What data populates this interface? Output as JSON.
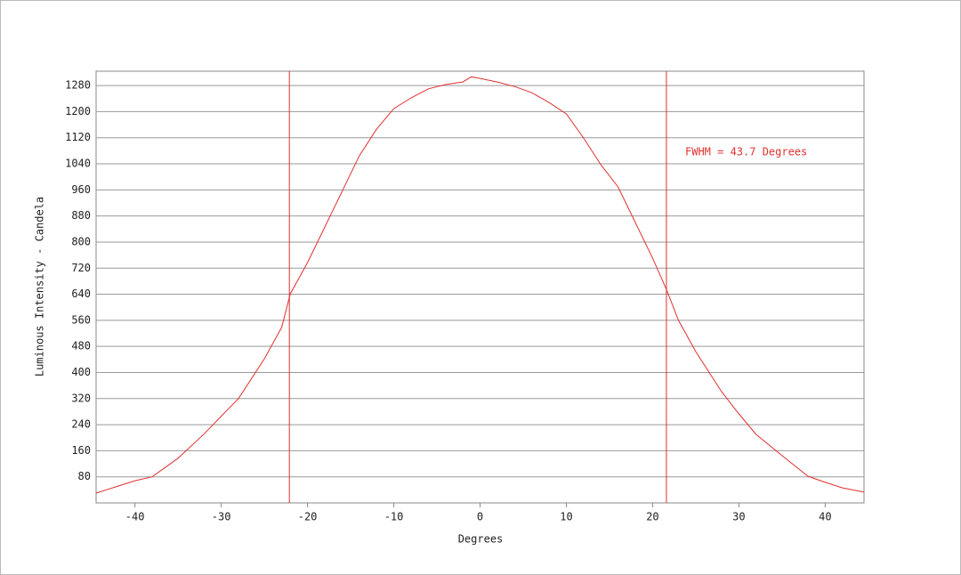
{
  "chart_data": {
    "type": "line",
    "xlabel": "Degrees",
    "ylabel": "Luminous Intensity - Candela",
    "annotation": "FWHM = 43.7 Degrees",
    "color": "#e03030",
    "x": [
      -44.5,
      -40,
      -38,
      -35,
      -32,
      -30,
      -28,
      -25,
      -23,
      -22,
      -20,
      -18,
      -16,
      -14,
      -12,
      -10,
      -8,
      -6,
      -4,
      -2,
      -1,
      0,
      2,
      4,
      6,
      8,
      10,
      12,
      14,
      16,
      18,
      20,
      21.6,
      23,
      25,
      28,
      30,
      32,
      35,
      38,
      40,
      42,
      44.5
    ],
    "values": [
      30,
      68,
      80,
      137,
      211,
      266,
      320,
      442,
      538,
      641,
      737,
      846,
      955,
      1064,
      1146,
      1209,
      1242,
      1270,
      1283,
      1291,
      1307,
      1302,
      1291,
      1277,
      1258,
      1228,
      1193,
      1119,
      1037,
      969,
      860,
      751,
      655,
      560,
      464,
      341,
      273,
      210,
      145,
      82,
      63,
      46,
      33
    ],
    "vlines": [
      -22.1,
      21.6
    ],
    "xlim": [
      -44.5,
      44.5
    ],
    "ylim": [
      0,
      1324
    ],
    "xticks": [
      -40,
      -30,
      -20,
      -10,
      0,
      10,
      20,
      30,
      40
    ],
    "yticks": [
      80,
      160,
      240,
      320,
      400,
      480,
      560,
      640,
      720,
      800,
      880,
      960,
      1040,
      1120,
      1200,
      1280
    ],
    "grid": true
  }
}
